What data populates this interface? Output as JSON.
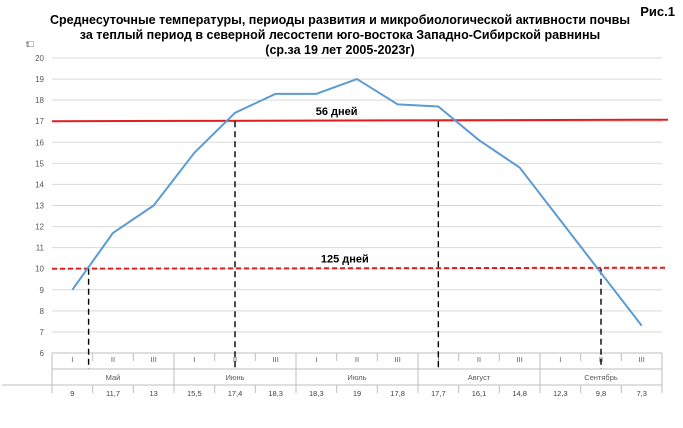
{
  "figure_label": "Рис.1",
  "chart_data": {
    "type": "line",
    "title_lines": [
      "Среднесуточные температуры, периоды развития и микробиологической активности почвы",
      "за теплый период в северной лесостепи юго-востока Западно-Сибирской равнины",
      "(ср.за 19 лет 2005-2023г)"
    ],
    "ylabel": "t□",
    "ylim": [
      6,
      20
    ],
    "yticks": [
      6,
      7,
      8,
      9,
      10,
      11,
      12,
      13,
      14,
      15,
      16,
      17,
      18,
      19,
      20
    ],
    "grid": true,
    "decades": [
      "I",
      "II",
      "III",
      "I",
      "II",
      "III",
      "I",
      "II",
      "III",
      "I",
      "II",
      "III",
      "I",
      "II",
      "III"
    ],
    "months": [
      {
        "name": "Май",
        "start": 1,
        "end": 3
      },
      {
        "name": "Июнь",
        "start": 4,
        "end": 6
      },
      {
        "name": "Июль",
        "start": 7,
        "end": 9
      },
      {
        "name": "Август",
        "start": 10,
        "end": 12
      },
      {
        "name": "Сентябрь",
        "start": 13,
        "end": 15
      }
    ],
    "value_labels": [
      "9",
      "11,7",
      "13",
      "15,5",
      "17,4",
      "18,3",
      "18,3",
      "19",
      "17,8",
      "17,7",
      "16,1",
      "14,8",
      "12,3",
      "9,8",
      "7,3"
    ],
    "series": [
      {
        "color": "#5b9bd5",
        "values": [
          9.0,
          11.7,
          13.0,
          15.5,
          17.4,
          18.3,
          18.3,
          19.0,
          17.8,
          17.7,
          16.1,
          14.8,
          12.3,
          9.8,
          7.3
        ]
      }
    ],
    "thresholds": [
      {
        "value": 17,
        "style": "solid",
        "color": "#e02020",
        "label": "56 дней",
        "period_start": 5.0,
        "period_end": 10.0
      },
      {
        "value": 10,
        "style": "dashed",
        "color": "#e02020",
        "label": "125 дней",
        "period_start": 1.4,
        "period_end": 14.0
      }
    ]
  }
}
